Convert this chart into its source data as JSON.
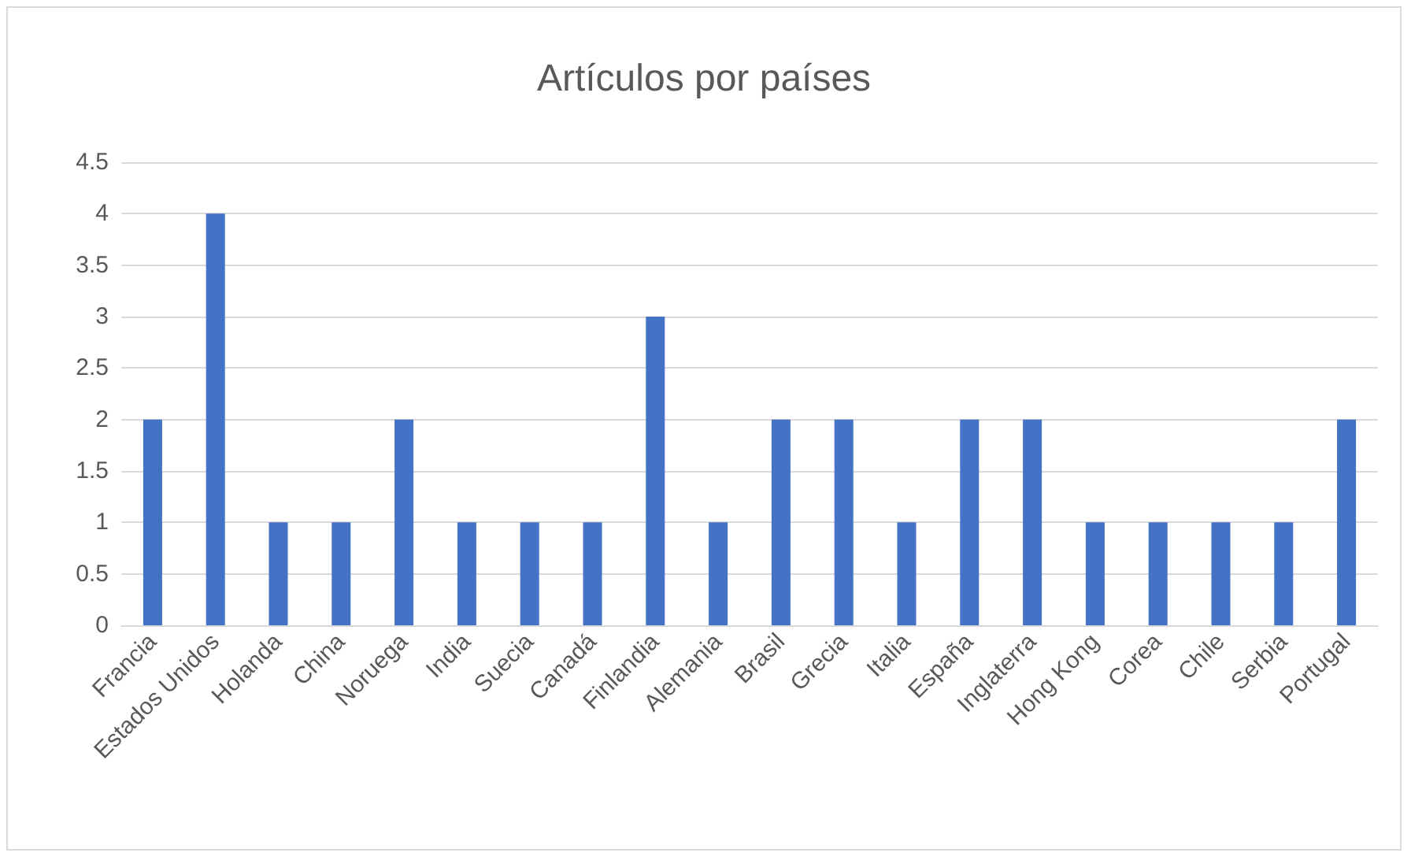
{
  "chart_data": {
    "type": "bar",
    "title": "Artículos por países",
    "categories": [
      "Francia",
      "Estados Unidos",
      "Holanda",
      "China",
      "Noruega",
      "India",
      "Suecia",
      "Canadá",
      "Finlandia",
      "Alemania",
      "Brasil",
      "Grecia",
      "Italia",
      "España",
      "Inglaterra",
      "Hong Kong",
      "Corea",
      "Chile",
      "Serbia",
      "Portugal"
    ],
    "values": [
      2,
      4,
      1,
      1,
      2,
      1,
      1,
      1,
      3,
      1,
      2,
      2,
      1,
      2,
      2,
      1,
      1,
      1,
      1,
      2
    ],
    "color": "#4472c4",
    "ylim": [
      0,
      4.5
    ],
    "yticks": [
      0,
      0.5,
      1,
      1.5,
      2,
      2.5,
      3,
      3.5,
      4,
      4.5
    ],
    "grid": "y"
  }
}
